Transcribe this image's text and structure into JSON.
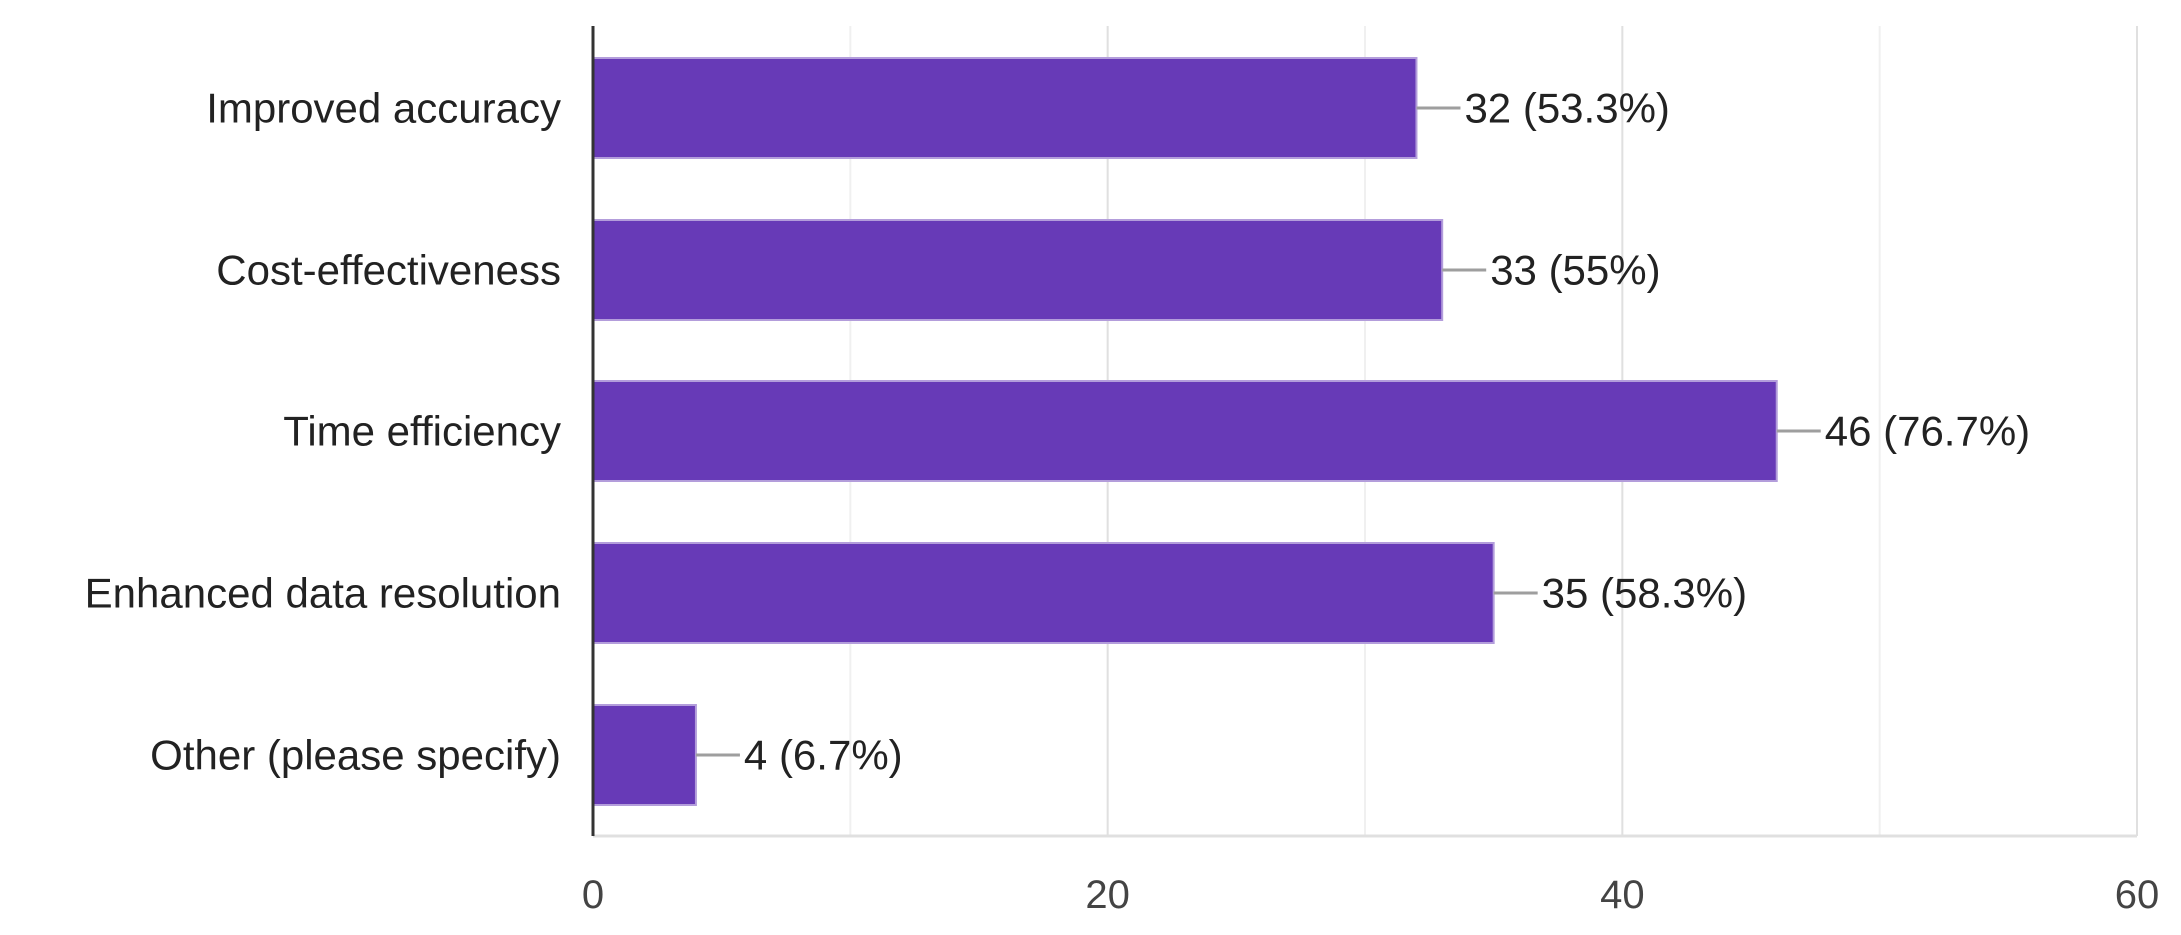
{
  "chart_data": {
    "type": "bar",
    "orientation": "horizontal",
    "title": "",
    "xlabel": "",
    "ylabel": "",
    "categories": [
      "Improved accuracy",
      "Cost-effectiveness",
      "Time efficiency",
      "Enhanced data resolution",
      "Other (please specify)"
    ],
    "values": [
      32,
      33,
      46,
      35,
      4
    ],
    "data_labels": [
      "32 (53.3%)",
      "33 (55%)",
      "46 (76.7%)",
      "35 (58.3%)",
      "4 (6.7%)"
    ],
    "xlim": [
      0,
      60
    ],
    "x_ticks": [
      0,
      20,
      40,
      60
    ],
    "x_tick_labels": [
      "0",
      "20",
      "40",
      "60"
    ],
    "minor_gridlines": [
      10,
      30,
      50
    ],
    "grid": true,
    "legend": "none",
    "colors": {
      "bar": "#673AB7",
      "bar_edge": "#B39DDB",
      "grid_major": "#E0E0E0",
      "grid_minor": "#F0F0F0",
      "axis": "#333333",
      "leader": "#9E9E9E"
    }
  }
}
